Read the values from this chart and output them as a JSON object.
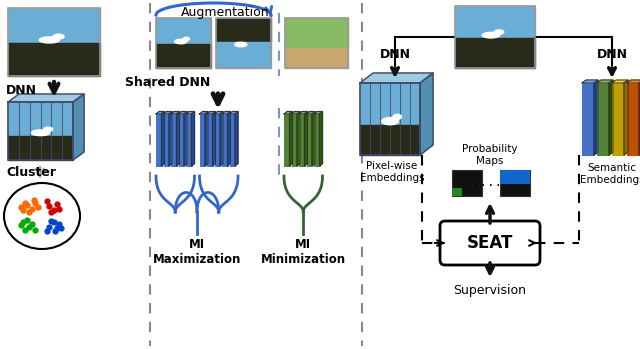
{
  "bg_color": "#ffffff",
  "section1": {
    "dnn_label": "DNN",
    "cluster_label": "Cluster"
  },
  "section2": {
    "augmentation_label": "Augmentation",
    "shared_dnn_label": "Shared DNN",
    "mi_max_label": "MI\nMaximization",
    "mi_min_label": "MI\nMinimization"
  },
  "section3": {
    "dnn_left_label": "DNN",
    "dnn_right_label": "DNN",
    "pixel_wise_label": "Pixel-wise\nEmbeddings",
    "prob_maps_label": "Probability\nMaps",
    "semantic_emb_label": "Semantic\nEmbeddings",
    "seat_label": "SEAT",
    "supervision_label": "Supervision"
  },
  "colors": {
    "blue_bar": "#4472C4",
    "blue_bar_dark": "#2a52a0",
    "blue_bar_top": "#6090d8",
    "green_bar": "#548235",
    "green_bar_dark": "#2a5010",
    "green_bar_top": "#70a050",
    "orange_bar": "#C05000",
    "yellow_bar": "#A08000",
    "cluster_orange": "#FF6600",
    "cluster_red": "#CC0000",
    "cluster_green": "#00AA00",
    "cluster_blue": "#0044CC",
    "sky_blue": "#6aaed6",
    "sky_light": "#8ac4e8",
    "rock_dark": "#2a2a1a",
    "cube_face": "#7ab8d4",
    "cube_top": "#a0cce0",
    "cube_right": "#5090b0",
    "cube_line": "#404870",
    "sep_color": "#888888",
    "aug_arrow": "#3366cc",
    "blue_brace": "#3366cc",
    "green_brace": "#336633",
    "arrow_black": "#111111",
    "dashed_blue": "#7799bb"
  }
}
